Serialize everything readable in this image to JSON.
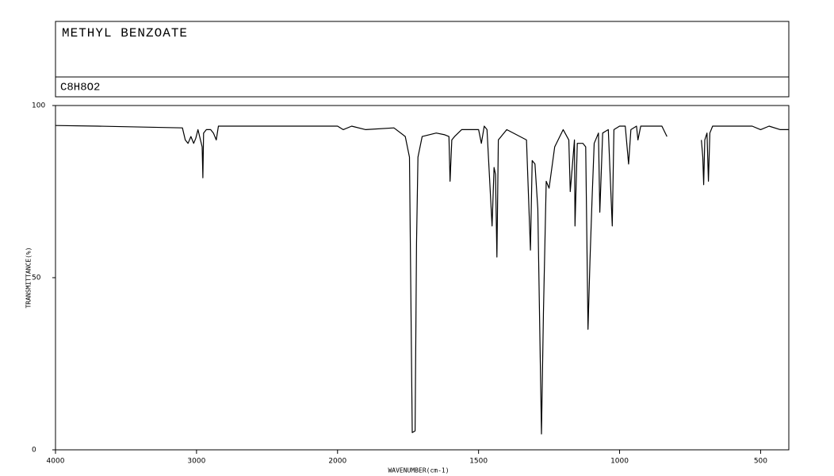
{
  "chart_data": {
    "type": "line",
    "title": "METHYL BENZOATE",
    "subtitle": "C8H8O2",
    "x_label": "WAVENUMBER(cm-1)",
    "y_label": "TRANSMITTANCE(%)",
    "x": [
      4000,
      3700,
      3100,
      3080,
      3060,
      3040,
      3020,
      3005,
      2990,
      2960,
      2955,
      2950,
      2930,
      2900,
      2880,
      2860,
      2845,
      2600,
      2000,
      1980,
      1950,
      1900,
      1800,
      1760,
      1745,
      1735,
      1725,
      1720,
      1715,
      1700,
      1650,
      1620,
      1605,
      1601,
      1595,
      1585,
      1560,
      1500,
      1490,
      1480,
      1470,
      1452,
      1445,
      1440,
      1435,
      1430,
      1400,
      1330,
      1316,
      1310,
      1300,
      1290,
      1282,
      1277,
      1270,
      1260,
      1250,
      1245,
      1230,
      1200,
      1180,
      1175,
      1170,
      1160,
      1158,
      1150,
      1130,
      1120,
      1112,
      1105,
      1098,
      1090,
      1075,
      1070,
      1060,
      1040,
      1026,
      1020,
      1000,
      980,
      968,
      960,
      940,
      935,
      925,
      850,
      832,
      780,
      710,
      705,
      702,
      698,
      690,
      685,
      680,
      670,
      600,
      530,
      500,
      470,
      430,
      400
    ],
    "values": [
      94.2,
      94,
      93.5,
      90,
      89,
      91,
      89,
      90.5,
      93,
      88,
      79,
      92,
      93,
      93,
      92,
      90,
      94,
      94,
      94,
      93,
      94,
      93,
      93.5,
      91,
      85,
      5,
      5.5,
      60,
      85,
      91,
      92,
      91.5,
      91,
      78,
      90,
      91,
      93,
      93,
      89,
      94,
      93,
      65,
      82,
      80,
      56,
      90,
      93,
      90,
      58,
      84,
      83,
      70,
      30,
      4.6,
      40,
      78,
      76,
      79,
      88,
      93,
      90,
      75,
      80,
      90,
      65,
      89,
      89,
      88,
      35,
      55,
      72,
      89,
      92,
      69,
      92,
      93,
      65,
      93,
      94,
      94,
      83,
      93,
      94,
      90,
      94,
      94,
      91,
      null,
      90,
      85,
      77,
      90,
      92,
      78,
      92,
      94,
      94,
      94,
      93,
      94,
      93,
      93
    ],
    "color": "#000000",
    "xlim": [
      4000,
      400
    ],
    "x_scale": {
      "break": 2000,
      "ratio": 2
    },
    "xticks": [
      4000,
      3000,
      2000,
      1500,
      1000,
      500
    ],
    "ylim": [
      0,
      100
    ],
    "yticks": [
      0,
      50,
      100
    ]
  }
}
